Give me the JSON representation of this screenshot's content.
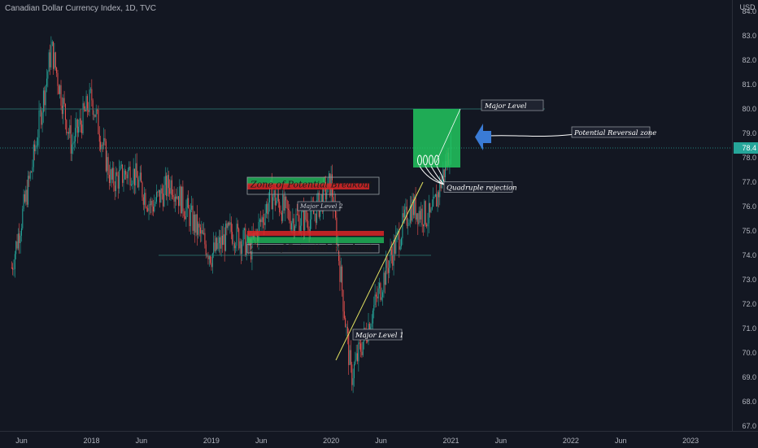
{
  "header": {
    "title": "Canadian Dollar Currency Index, 1D, TVC",
    "currency": "USD"
  },
  "price_axis": {
    "ticks": [
      "84.0",
      "83.0",
      "82.0",
      "81.0",
      "80.0",
      "79.0",
      "78.0",
      "77.0",
      "76.0",
      "75.0",
      "74.0",
      "73.0",
      "72.0",
      "71.0",
      "70.0",
      "69.0",
      "68.0",
      "67.0"
    ],
    "current_price": "78.4",
    "current_color": "#26a69a"
  },
  "time_axis": {
    "ticks": [
      "Jun",
      "2018",
      "Jun",
      "2019",
      "Jun",
      "2020",
      "Jun",
      "2021",
      "Jun",
      "2022",
      "Jun",
      "2023"
    ]
  },
  "annotations": {
    "major_level": "Major Level",
    "potential_reversal": "Potential Reversal zone",
    "quadruple_rejection": "Quadruple rejection",
    "major_level_1": "Major Level 1",
    "major_level_2": "Major Level 2",
    "zone_breakout_upper": "Zone of Potential Breakout",
    "zone_breakout_lower": "Zone of Potential Breakout"
  },
  "colors": {
    "up": "#26a69a",
    "down": "#ef5350",
    "zone_green": "#22c55e",
    "zone_red": "#dc2626",
    "arrow_blue": "#3a7bd5",
    "trendline": "#e0e060"
  },
  "chart_data": {
    "type": "candlestick",
    "title": "Canadian Dollar Currency Index, 1D, TVC",
    "y_range": [
      67.0,
      84.0
    ],
    "x_range": [
      "2017-05",
      "2023-06"
    ],
    "price_path": [
      {
        "x": "2017-05",
        "y": 73.5
      },
      {
        "x": "2017-07",
        "y": 77.5
      },
      {
        "x": "2017-09",
        "y": 82.5
      },
      {
        "x": "2017-11",
        "y": 78.5
      },
      {
        "x": "2018-01",
        "y": 80.5
      },
      {
        "x": "2018-03",
        "y": 77.0
      },
      {
        "x": "2018-05",
        "y": 77.5
      },
      {
        "x": "2018-07",
        "y": 76.0
      },
      {
        "x": "2018-09",
        "y": 77.0
      },
      {
        "x": "2018-11",
        "y": 75.5
      },
      {
        "x": "2019-01",
        "y": 74.0
      },
      {
        "x": "2019-03",
        "y": 75.0
      },
      {
        "x": "2019-05",
        "y": 74.3
      },
      {
        "x": "2019-07",
        "y": 76.5
      },
      {
        "x": "2019-09",
        "y": 75.5
      },
      {
        "x": "2019-11",
        "y": 75.5
      },
      {
        "x": "2020-01",
        "y": 77.0
      },
      {
        "x": "2020-03",
        "y": 69.0
      },
      {
        "x": "2020-05",
        "y": 71.5
      },
      {
        "x": "2020-07",
        "y": 74.0
      },
      {
        "x": "2020-09",
        "y": 76.0
      },
      {
        "x": "2020-11",
        "y": 75.5
      },
      {
        "x": "2021-01",
        "y": 78.5
      }
    ],
    "levels": [
      80.0,
      78.4,
      77.0,
      75.0,
      74.0
    ],
    "last_price": 78.4
  }
}
